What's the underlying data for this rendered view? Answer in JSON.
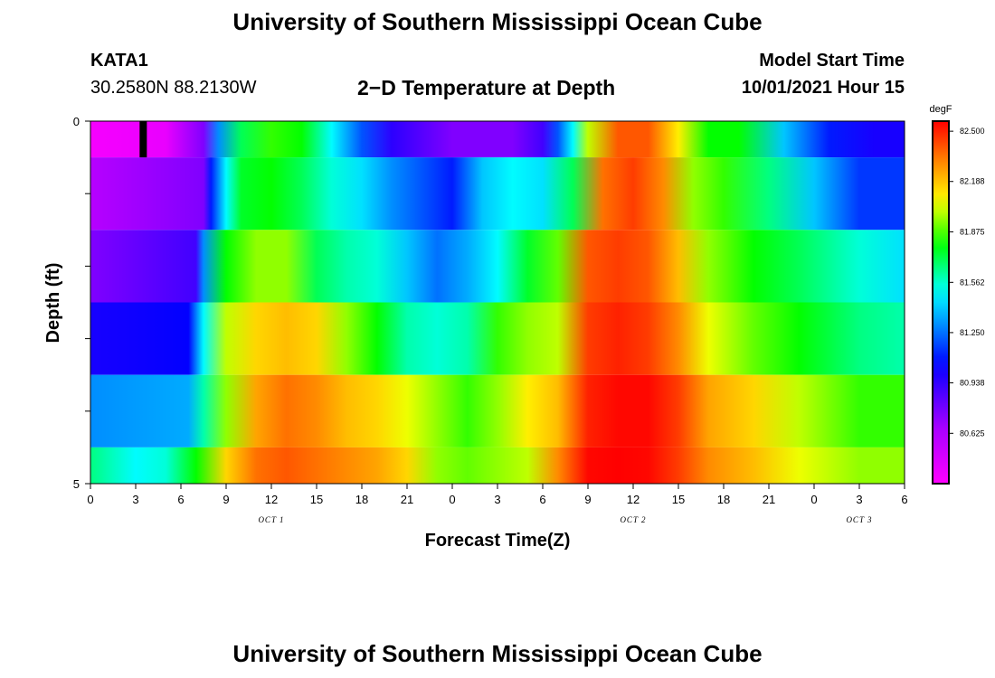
{
  "header": {
    "title": "University of Southern Mississippi Ocean Cube",
    "station": "KATA1",
    "coords": "30.2580N  88.2130W",
    "chart_title": "2−D Temperature at Depth",
    "start_label": "Model Start Time",
    "start_value": "10/01/2021 Hour 15"
  },
  "footer": {
    "title": "University of Southern Mississippi Ocean Cube"
  },
  "chart_data": {
    "type": "heatmap",
    "title": "2−D Temperature at Depth",
    "xlabel": "Forecast Time(Z)",
    "ylabel": "Depth (ft)",
    "x_hours_range": [
      0,
      54
    ],
    "y_range": [
      0,
      5
    ],
    "y_tick_labels": [
      "0",
      "5"
    ],
    "x_tick_labels": [
      "0",
      "3",
      "6",
      "9",
      "12",
      "15",
      "18",
      "21",
      "0",
      "3",
      "6",
      "9",
      "12",
      "15",
      "18",
      "21",
      "0",
      "3",
      "6"
    ],
    "date_labels": [
      {
        "label": "OCT 1",
        "hour": 12
      },
      {
        "label": "OCT 2",
        "hour": 36
      },
      {
        "label": "OCT 3",
        "hour": 51
      }
    ],
    "colorbar": {
      "unit": "degF",
      "min": 80.3125,
      "max": 82.5625,
      "tick_labels": [
        "82.500",
        "82.188",
        "81.875",
        "81.562",
        "81.250",
        "80.938",
        "80.625"
      ],
      "tick_values": [
        82.5,
        82.188,
        81.875,
        81.562,
        81.25,
        80.938,
        80.625
      ]
    },
    "current_time_marker_hour": 3.5,
    "depth_layers": [
      0,
      0.5,
      1.5,
      2.5,
      3.5,
      4.5
    ],
    "temperature_profiles": [
      [
        [
          0,
          80.35
        ],
        [
          5,
          80.4
        ],
        [
          7.5,
          80.75
        ],
        [
          8.5,
          81.3
        ],
        [
          10,
          81.7
        ],
        [
          12,
          81.85
        ],
        [
          14,
          81.8
        ],
        [
          16,
          81.5
        ],
        [
          18,
          81.2
        ],
        [
          20,
          80.95
        ],
        [
          24,
          80.75
        ],
        [
          28,
          80.75
        ],
        [
          30,
          80.9
        ],
        [
          31,
          81.2
        ],
        [
          32,
          81.5
        ],
        [
          33,
          82.0
        ],
        [
          35,
          82.4
        ],
        [
          37,
          82.4
        ],
        [
          39,
          82.1
        ],
        [
          41,
          81.8
        ],
        [
          43,
          81.8
        ],
        [
          46,
          81.4
        ],
        [
          49,
          81.1
        ],
        [
          52,
          81.0
        ],
        [
          54,
          81.0
        ]
      ],
      [
        [
          0,
          80.6
        ],
        [
          7.5,
          80.75
        ],
        [
          8,
          81.1
        ],
        [
          9,
          81.5
        ],
        [
          10,
          81.75
        ],
        [
          12,
          81.8
        ],
        [
          14,
          81.7
        ],
        [
          16,
          81.55
        ],
        [
          18,
          81.45
        ],
        [
          20,
          81.3
        ],
        [
          24,
          81.1
        ],
        [
          26,
          81.4
        ],
        [
          28,
          81.5
        ],
        [
          30,
          81.45
        ],
        [
          32,
          81.7
        ],
        [
          34,
          82.35
        ],
        [
          36,
          82.45
        ],
        [
          38,
          82.3
        ],
        [
          40,
          81.95
        ],
        [
          42,
          81.85
        ],
        [
          45,
          81.65
        ],
        [
          48,
          81.4
        ],
        [
          51,
          81.15
        ],
        [
          54,
          81.15
        ]
      ],
      [
        [
          0,
          80.75
        ],
        [
          7,
          80.9
        ],
        [
          7.5,
          81.3
        ],
        [
          9,
          81.8
        ],
        [
          11,
          81.95
        ],
        [
          13,
          81.95
        ],
        [
          15,
          81.7
        ],
        [
          17,
          81.6
        ],
        [
          19,
          81.55
        ],
        [
          21,
          81.4
        ],
        [
          23,
          81.25
        ],
        [
          25,
          81.35
        ],
        [
          27,
          81.5
        ],
        [
          29,
          81.75
        ],
        [
          31,
          81.9
        ],
        [
          33,
          82.4
        ],
        [
          35,
          82.45
        ],
        [
          37,
          82.4
        ],
        [
          39,
          82.2
        ],
        [
          41,
          81.95
        ],
        [
          44,
          81.8
        ],
        [
          47,
          81.7
        ],
        [
          51,
          81.55
        ],
        [
          54,
          81.45
        ]
      ],
      [
        [
          0,
          81.0
        ],
        [
          6.5,
          81.05
        ],
        [
          7.5,
          81.5
        ],
        [
          9,
          82.0
        ],
        [
          11,
          82.15
        ],
        [
          13,
          82.2
        ],
        [
          15,
          82.15
        ],
        [
          17,
          81.95
        ],
        [
          19,
          81.8
        ],
        [
          21,
          81.6
        ],
        [
          23,
          81.55
        ],
        [
          25,
          81.6
        ],
        [
          27,
          81.85
        ],
        [
          29,
          81.95
        ],
        [
          31,
          82.0
        ],
        [
          33,
          82.45
        ],
        [
          35,
          82.5
        ],
        [
          37,
          82.45
        ],
        [
          39,
          82.3
        ],
        [
          41,
          82.05
        ],
        [
          44,
          81.9
        ],
        [
          47,
          81.8
        ],
        [
          51,
          81.65
        ],
        [
          54,
          81.6
        ]
      ],
      [
        [
          0,
          81.3
        ],
        [
          6.5,
          81.35
        ],
        [
          7.5,
          81.6
        ],
        [
          9,
          81.95
        ],
        [
          11,
          82.25
        ],
        [
          13,
          82.35
        ],
        [
          15,
          82.3
        ],
        [
          17,
          82.2
        ],
        [
          19,
          82.15
        ],
        [
          21,
          82.05
        ],
        [
          23,
          81.95
        ],
        [
          25,
          81.85
        ],
        [
          27,
          81.95
        ],
        [
          29,
          82.1
        ],
        [
          31,
          82.2
        ],
        [
          33,
          82.5
        ],
        [
          35,
          82.55
        ],
        [
          37,
          82.55
        ],
        [
          39,
          82.45
        ],
        [
          41,
          82.25
        ],
        [
          44,
          82.15
        ],
        [
          47,
          82.0
        ],
        [
          51,
          81.85
        ],
        [
          54,
          81.85
        ]
      ],
      [
        [
          0,
          81.65
        ],
        [
          3,
          81.5
        ],
        [
          5,
          81.55
        ],
        [
          7,
          81.8
        ],
        [
          9,
          82.15
        ],
        [
          11,
          82.35
        ],
        [
          13,
          82.4
        ],
        [
          15,
          82.35
        ],
        [
          17,
          82.3
        ],
        [
          19,
          82.25
        ],
        [
          21,
          82.15
        ],
        [
          23,
          81.95
        ],
        [
          25,
          81.9
        ],
        [
          27,
          81.95
        ],
        [
          29,
          82.0
        ],
        [
          31,
          82.3
        ],
        [
          33,
          82.55
        ],
        [
          35,
          82.6
        ],
        [
          37,
          82.55
        ],
        [
          39,
          82.45
        ],
        [
          41,
          82.3
        ],
        [
          44,
          82.2
        ],
        [
          47,
          82.05
        ],
        [
          51,
          81.95
        ],
        [
          54,
          81.95
        ]
      ]
    ]
  }
}
